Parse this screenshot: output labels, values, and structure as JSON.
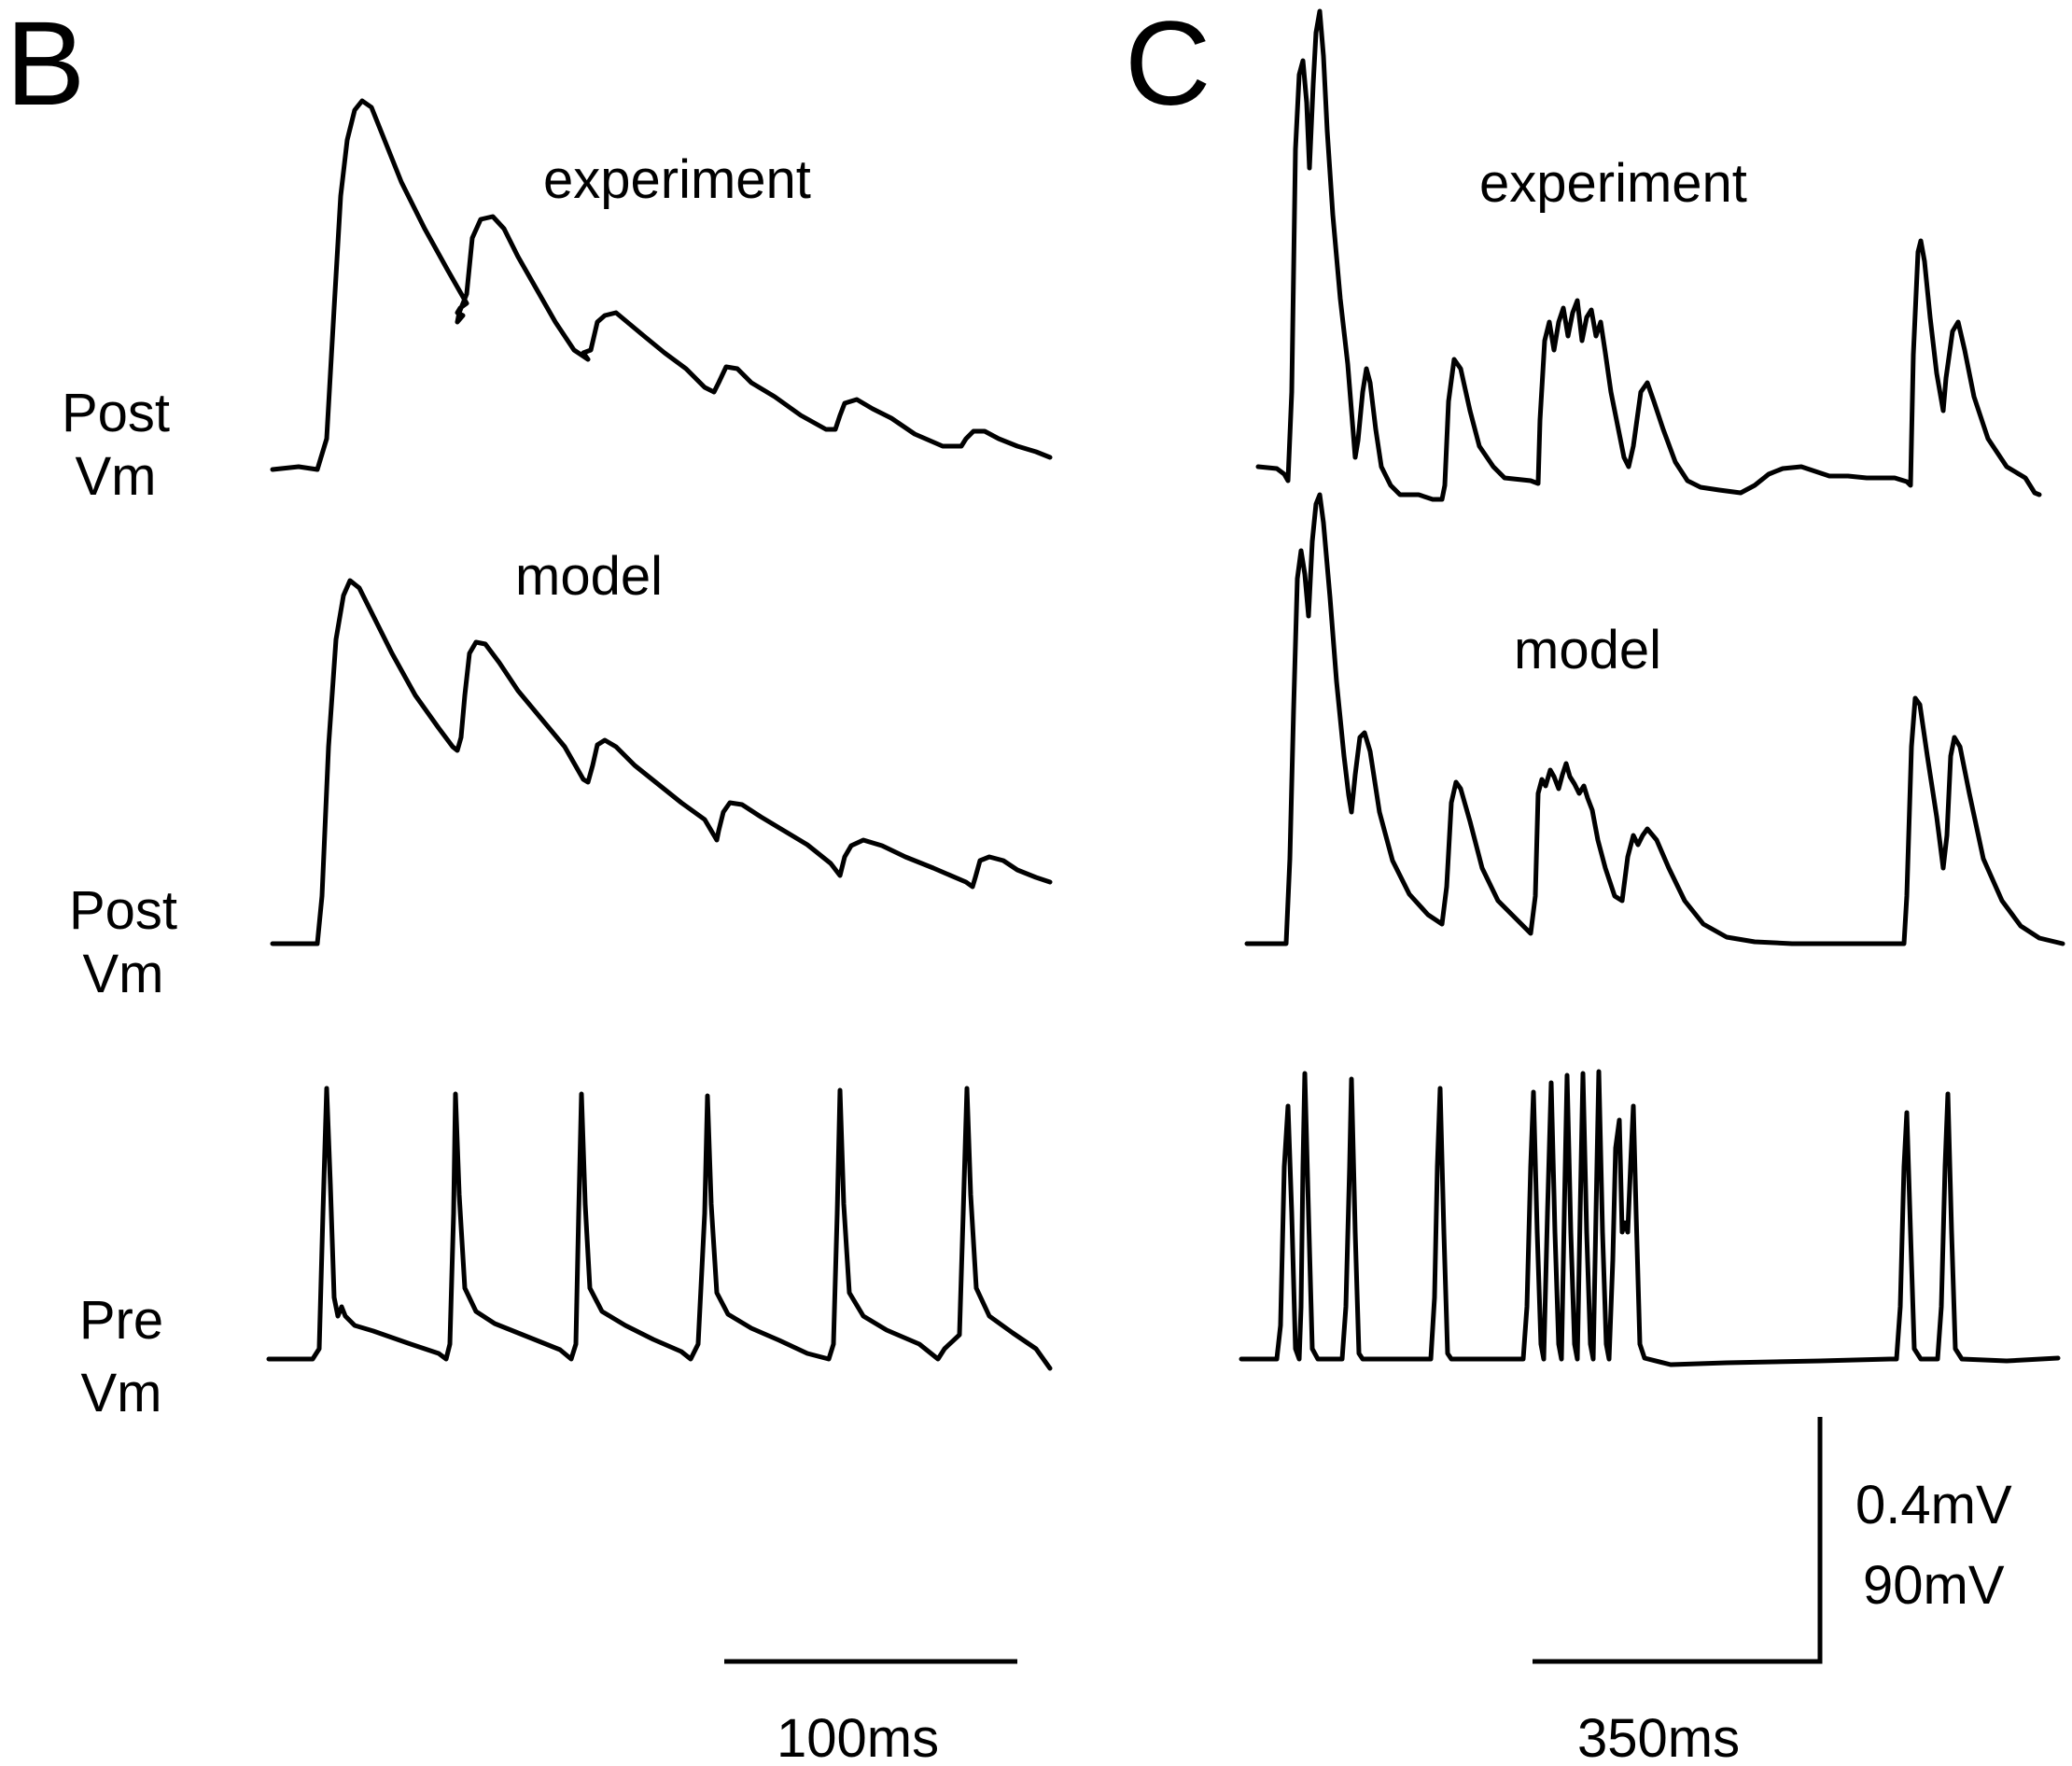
{
  "panels": {
    "B": {
      "letter": "B",
      "experiment_label": "experiment",
      "model_label": "model",
      "post_label_line1": "Post",
      "post_label_line2": "Vm",
      "post_model_label_line1": "Post",
      "post_model_label_line2": "Vm",
      "pre_label_line1": "Pre",
      "pre_label_line2": "Vm",
      "time_scale": "100ms"
    },
    "C": {
      "letter": "C",
      "experiment_label": "experiment",
      "model_label": "model",
      "time_scale": "350ms",
      "voltage_scale_1": "0.4mV",
      "voltage_scale_2": "90mV"
    }
  },
  "chart_data": [
    {
      "type": "line",
      "panel": "B",
      "title": "",
      "xlabel": "",
      "ylabel": "",
      "x_unit": "ms",
      "series": [
        {
          "name": "experiment",
          "spike_times": [
            12,
            55,
            98,
            140,
            183,
            225
          ],
          "relative_peaks": [
            1.0,
            0.7,
            0.45,
            0.3,
            0.25,
            0.2
          ]
        },
        {
          "name": "model",
          "spike_times": [
            12,
            55,
            98,
            140,
            183,
            225
          ],
          "relative_peaks": [
            1.0,
            0.85,
            0.55,
            0.4,
            0.3,
            0.25
          ]
        }
      ],
      "scale_bar": {
        "time": "100ms"
      }
    },
    {
      "type": "line",
      "panel": "C",
      "title": "",
      "xlabel": "",
      "ylabel": "",
      "x_unit": "ms",
      "scale_bar": {
        "time": "350ms",
        "voltage": [
          "0.4mV",
          "90mV"
        ]
      }
    }
  ]
}
